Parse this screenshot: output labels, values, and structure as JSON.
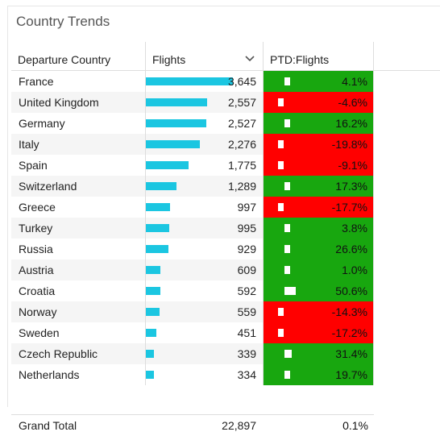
{
  "panel": {
    "title": "Country Trends"
  },
  "colors": {
    "bar": "#1bc6e1",
    "positive": "#18a70f",
    "negative": "#ff0000"
  },
  "table": {
    "headers": {
      "country": "Departure Country",
      "flights": "Flights",
      "ptd": "PTD:Flights"
    },
    "sort_icon": "chevron-down-icon",
    "max_flights": 3645,
    "rows": [
      {
        "country": "France",
        "flights": "3,645",
        "flights_value": 3645,
        "ptd": "4.1%",
        "ptd_value": 4.1,
        "ptd_sign": "positive"
      },
      {
        "country": "United Kingdom",
        "flights": "2,557",
        "flights_value": 2557,
        "ptd": "-4.6%",
        "ptd_value": -4.6,
        "ptd_sign": "negative"
      },
      {
        "country": "Germany",
        "flights": "2,527",
        "flights_value": 2527,
        "ptd": "16.2%",
        "ptd_value": 16.2,
        "ptd_sign": "positive"
      },
      {
        "country": "Italy",
        "flights": "2,276",
        "flights_value": 2276,
        "ptd": "-19.8%",
        "ptd_value": -19.8,
        "ptd_sign": "negative"
      },
      {
        "country": "Spain",
        "flights": "1,775",
        "flights_value": 1775,
        "ptd": "-9.1%",
        "ptd_value": -9.1,
        "ptd_sign": "negative"
      },
      {
        "country": "Switzerland",
        "flights": "1,289",
        "flights_value": 1289,
        "ptd": "17.3%",
        "ptd_value": 17.3,
        "ptd_sign": "positive"
      },
      {
        "country": "Greece",
        "flights": "997",
        "flights_value": 997,
        "ptd": "-17.7%",
        "ptd_value": -17.7,
        "ptd_sign": "negative"
      },
      {
        "country": "Turkey",
        "flights": "995",
        "flights_value": 995,
        "ptd": "3.8%",
        "ptd_value": 3.8,
        "ptd_sign": "positive"
      },
      {
        "country": "Russia",
        "flights": "929",
        "flights_value": 929,
        "ptd": "26.6%",
        "ptd_value": 26.6,
        "ptd_sign": "positive"
      },
      {
        "country": "Austria",
        "flights": "609",
        "flights_value": 609,
        "ptd": "1.0%",
        "ptd_value": 1.0,
        "ptd_sign": "positive"
      },
      {
        "country": "Croatia",
        "flights": "592",
        "flights_value": 592,
        "ptd": "50.6%",
        "ptd_value": 50.6,
        "ptd_sign": "positive"
      },
      {
        "country": "Norway",
        "flights": "559",
        "flights_value": 559,
        "ptd": "-14.3%",
        "ptd_value": -14.3,
        "ptd_sign": "negative"
      },
      {
        "country": "Sweden",
        "flights": "451",
        "flights_value": 451,
        "ptd": "-17.2%",
        "ptd_value": -17.2,
        "ptd_sign": "negative"
      },
      {
        "country": "Czech Republic",
        "flights": "339",
        "flights_value": 339,
        "ptd": "31.4%",
        "ptd_value": 31.4,
        "ptd_sign": "positive"
      },
      {
        "country": "Netherlands",
        "flights": "334",
        "flights_value": 334,
        "ptd": "19.7%",
        "ptd_value": 19.7,
        "ptd_sign": "positive"
      }
    ],
    "total": {
      "label": "Grand Total",
      "flights": "22,897",
      "ptd": "0.1%"
    }
  }
}
